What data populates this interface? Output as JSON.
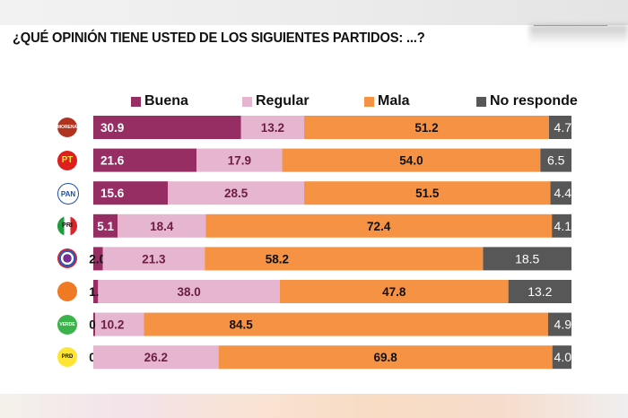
{
  "title": "¿QUÉ OPINIÓN TIENE USTED DE LOS SIGUIENTES PARTIDOS: ...?",
  "colors": {
    "buena": "#962d63",
    "regular": "#e6b5d0",
    "mala": "#f59244",
    "no_responde": "#575757"
  },
  "chart_data": {
    "type": "bar",
    "orientation": "horizontal",
    "stacked": true,
    "title": "¿QUÉ OPINIÓN TIENE USTED DE LOS SIGUIENTES PARTIDOS: ...?",
    "xlabel": "",
    "ylabel": "",
    "xlim": [
      0,
      100
    ],
    "grid": false,
    "legend_position": "top",
    "categories": [
      "MORENA",
      "PT",
      "PAN",
      "PRI",
      "PES",
      "MC",
      "PVEM",
      "PRD"
    ],
    "series": [
      {
        "name": "Buena",
        "values": [
          30.9,
          21.6,
          15.6,
          5.1,
          2.0,
          1.0,
          0.4,
          0.0
        ]
      },
      {
        "name": "Regular",
        "values": [
          13.2,
          17.9,
          28.5,
          18.4,
          21.3,
          38.0,
          10.2,
          26.2
        ]
      },
      {
        "name": "Mala",
        "values": [
          51.2,
          54.0,
          51.5,
          72.4,
          58.2,
          47.8,
          84.5,
          69.8
        ]
      },
      {
        "name": "No responde",
        "values": [
          4.7,
          6.5,
          4.4,
          4.1,
          18.5,
          13.2,
          4.9,
          4.0
        ]
      }
    ],
    "labels": [
      [
        "30.9",
        "13.2",
        "51.2",
        "4.7"
      ],
      [
        "21.6",
        "17.9",
        "54.0",
        "6.5"
      ],
      [
        "15.6",
        "28.5",
        "51.5",
        "4.4"
      ],
      [
        "5.1",
        "18.4",
        "72.4",
        "4.1"
      ],
      [
        "2.0",
        "21.3",
        "58.2",
        "18.5"
      ],
      [
        "1.0",
        "38.0",
        "47.8",
        "13.2"
      ],
      [
        "0.4",
        "10.2",
        "84.5",
        "4.9"
      ],
      [
        "0.0",
        "26.2",
        "69.8",
        "4.0"
      ]
    ]
  },
  "legend": [
    {
      "label": "Buena",
      "key": "buena"
    },
    {
      "label": "Regular",
      "key": "regular"
    },
    {
      "label": "Mala",
      "key": "mala"
    },
    {
      "label": "No responde",
      "key": "no_responde"
    }
  ],
  "logos": [
    {
      "party": "MORENA",
      "text": "MORENA",
      "icon": "morena-logo-icon"
    },
    {
      "party": "PT",
      "text": "PT",
      "icon": "pt-logo-icon"
    },
    {
      "party": "PAN",
      "text": "PAN",
      "icon": "pan-logo-icon"
    },
    {
      "party": "PRI",
      "text": "PRI",
      "icon": "pri-logo-icon"
    },
    {
      "party": "PES",
      "text": "",
      "icon": "pes-logo-icon"
    },
    {
      "party": "MC",
      "text": "",
      "icon": "mc-logo-icon"
    },
    {
      "party": "PVEM",
      "text": "VERDE",
      "icon": "pvem-logo-icon"
    },
    {
      "party": "PRD",
      "text": "PRD",
      "icon": "prd-logo-icon"
    }
  ]
}
